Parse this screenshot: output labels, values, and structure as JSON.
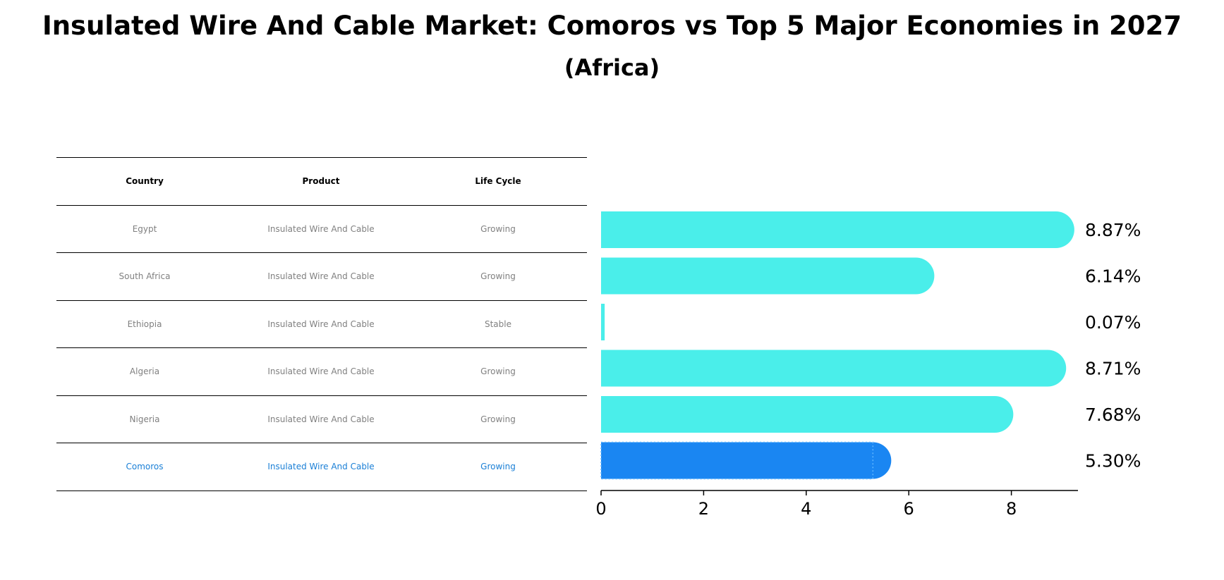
{
  "title_line1": "Insulated Wire And Cable Market: Comoros vs Top 5 Major Economies in 2027",
  "title_line2": "(Africa)",
  "table": {
    "headers": [
      "Country",
      "Product",
      "Life Cycle"
    ],
    "rows": [
      {
        "country": "Egypt",
        "product": "Insulated Wire And Cable",
        "life_cycle": "Growing"
      },
      {
        "country": "South Africa",
        "product": "Insulated Wire And Cable",
        "life_cycle": "Growing"
      },
      {
        "country": "Ethiopia",
        "product": "Insulated Wire And Cable",
        "life_cycle": "Stable"
      },
      {
        "country": "Algeria",
        "product": "Insulated Wire And Cable",
        "life_cycle": "Growing"
      },
      {
        "country": "Nigeria",
        "product": "Insulated Wire And Cable",
        "life_cycle": "Growing"
      },
      {
        "country": "Comoros",
        "product": "Insulated Wire And Cable",
        "life_cycle": "Growing"
      }
    ]
  },
  "chart_data": {
    "type": "bar",
    "orientation": "horizontal",
    "categories": [
      "Egypt",
      "South Africa",
      "Ethiopia",
      "Algeria",
      "Nigeria",
      "Comoros"
    ],
    "values": [
      8.87,
      6.14,
      0.07,
      8.71,
      7.68,
      5.3
    ],
    "value_labels": [
      "8.87%",
      "6.14%",
      "0.07%",
      "8.71%",
      "7.68%",
      "5.30%"
    ],
    "highlight": "Comoros",
    "xlim": [
      0,
      9.3
    ],
    "xticks": [
      0,
      2,
      4,
      6,
      8
    ],
    "colors": {
      "default": "#4aeeea",
      "highlight": "#1a86f2"
    }
  }
}
